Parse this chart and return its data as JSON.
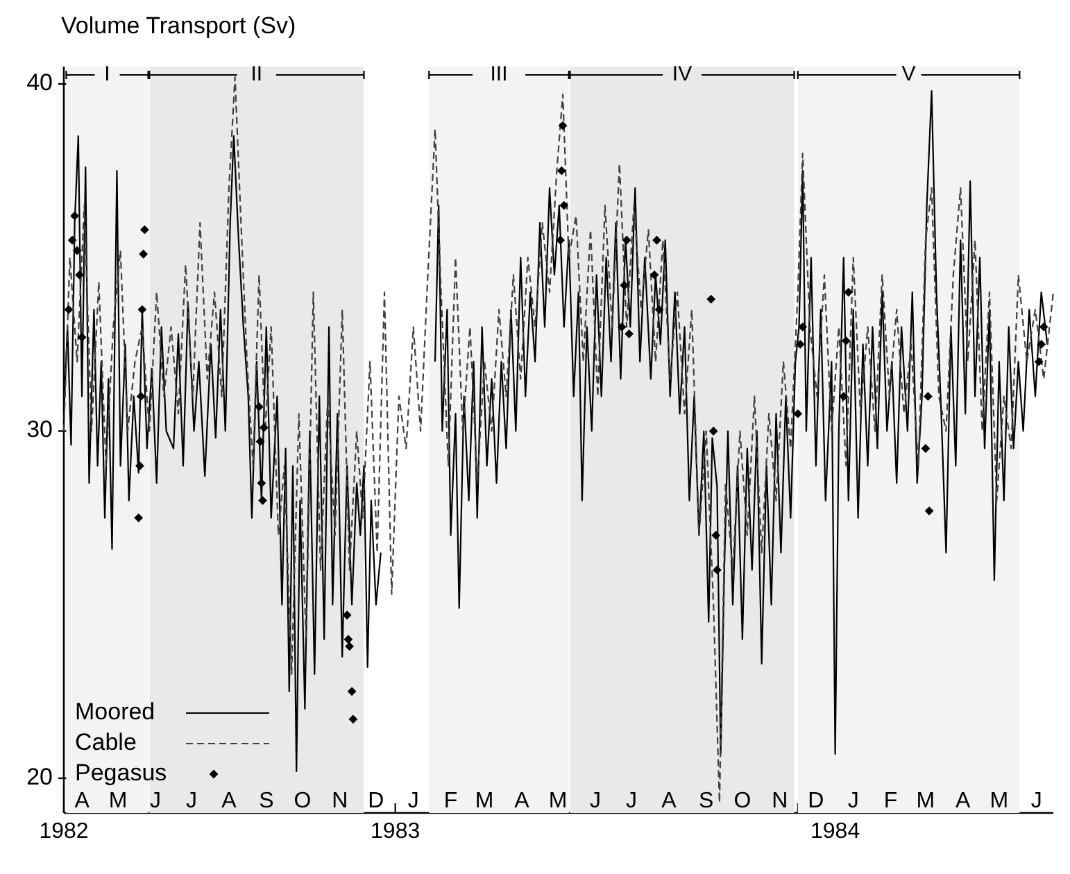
{
  "chart_data": {
    "type": "line",
    "ylabel": "Volume Transport (Sv)",
    "xlim": [
      "1982-04-01",
      "1984-06-30"
    ],
    "ylim": [
      19,
      40.5
    ],
    "yticks": [
      20,
      30,
      40
    ],
    "xticks": [
      {
        "value": "1982-04-01",
        "label": "1982"
      },
      {
        "value": "1982-05-01",
        "label": null
      },
      {
        "value": "1982-06-01",
        "label": null
      },
      {
        "value": "1982-07-01",
        "label": null
      },
      {
        "value": "1982-08-01",
        "label": null
      },
      {
        "value": "1982-09-01",
        "label": null
      },
      {
        "value": "1982-10-01",
        "label": null
      },
      {
        "value": "1982-11-01",
        "label": null
      },
      {
        "value": "1982-12-01",
        "label": null
      },
      {
        "value": "1983-01-01",
        "label": "1983"
      },
      {
        "value": "1983-02-01",
        "label": null
      },
      {
        "value": "1983-03-01",
        "label": null
      },
      {
        "value": "1983-04-01",
        "label": null
      },
      {
        "value": "1983-05-01",
        "label": null
      },
      {
        "value": "1983-06-01",
        "label": null
      },
      {
        "value": "1983-07-01",
        "label": null
      },
      {
        "value": "1983-08-01",
        "label": null
      },
      {
        "value": "1983-09-01",
        "label": null
      },
      {
        "value": "1983-10-01",
        "label": null
      },
      {
        "value": "1983-11-01",
        "label": null
      },
      {
        "value": "1983-12-01",
        "label": null
      },
      {
        "value": "1984-01-01",
        "label": "1984"
      },
      {
        "value": "1984-02-01",
        "label": null
      },
      {
        "value": "1984-03-01",
        "label": null
      },
      {
        "value": "1984-04-01",
        "label": null
      },
      {
        "value": "1984-05-01",
        "label": null
      },
      {
        "value": "1984-06-01",
        "label": null
      }
    ],
    "annotations": [
      "A",
      "M",
      "J",
      "J",
      "A",
      "S",
      "O",
      "N",
      "D",
      "J",
      "F",
      "M",
      "A",
      "M",
      "J",
      "J",
      "A",
      "S",
      "O",
      "N",
      "D",
      "J",
      "F",
      "M",
      "A",
      "M",
      "J"
    ],
    "bands": [
      {
        "axis": "x",
        "from": "1982-04-03",
        "to": "1982-06-10",
        "label": "I",
        "color": "#f3f3f3"
      },
      {
        "axis": "x",
        "from": "1982-06-11",
        "to": "1982-12-06",
        "label": "II",
        "color": "#e9e9e9"
      },
      {
        "axis": "x",
        "from": "1983-01-29",
        "to": "1983-05-25",
        "label": "III",
        "color": "#f3f3f3"
      },
      {
        "axis": "x",
        "from": "1983-05-26",
        "to": "1983-11-28",
        "label": "IV",
        "color": "#e9e9e9"
      },
      {
        "axis": "x",
        "from": "1983-12-01",
        "to": "1984-06-02",
        "label": "V",
        "color": "#f3f3f3"
      }
    ],
    "legend": "bottom left",
    "series": [
      {
        "name": "Moored",
        "line_style": "solid",
        "marker": "none",
        "color": "#000000",
        "x": [
          "1982-04-01",
          "1982-04-04",
          "1982-04-07",
          "1982-04-10",
          "1982-04-13",
          "1982-04-16",
          "1982-04-19",
          "1982-04-22",
          "1982-04-26",
          "1982-04-29",
          "1982-05-02",
          "1982-05-05",
          "1982-05-08",
          "1982-05-11",
          "1982-05-15",
          "1982-05-18",
          "1982-05-22",
          "1982-05-25",
          "1982-05-29",
          "1982-06-02",
          "1982-06-05",
          "1982-06-09",
          "1982-06-13",
          "1982-06-17",
          "1982-06-21",
          "1982-06-25",
          "1982-07-01",
          "1982-07-05",
          "1982-07-09",
          "1982-07-13",
          "1982-07-18",
          "1982-07-22",
          "1982-07-27",
          "1982-08-01",
          "1982-08-05",
          "1982-08-09",
          "1982-08-13",
          "1982-08-17",
          "1982-08-20",
          "1982-08-24",
          "1982-08-28",
          "1982-09-01",
          "1982-09-04",
          "1982-09-08",
          "1982-09-12",
          "1982-09-16",
          "1982-09-20",
          "1982-09-25",
          "1982-09-29",
          "1982-10-02",
          "1982-10-05",
          "1982-10-08",
          "1982-10-11",
          "1982-10-14",
          "1982-10-18",
          "1982-10-22",
          "1982-10-26",
          "1982-10-30",
          "1982-11-03",
          "1982-11-07",
          "1982-11-10",
          "1982-11-14",
          "1982-11-18",
          "1982-11-22",
          "1982-11-26",
          "1982-11-30",
          "1982-12-03",
          "1982-12-06",
          "1982-12-09",
          "1982-12-12",
          "1982-12-16",
          "1982-12-20",
          "1983-01-05",
          "1983-02-03",
          "1983-02-06",
          "1983-02-09",
          "1983-02-13",
          "1983-02-16",
          "1983-02-20",
          "1983-02-23",
          "1983-02-27",
          "1983-03-03",
          "1983-03-07",
          "1983-03-10",
          "1983-03-14",
          "1983-03-18",
          "1983-03-22",
          "1983-03-26",
          "1983-03-30",
          "1983-04-03",
          "1983-04-07",
          "1983-04-11",
          "1983-04-15",
          "1983-04-19",
          "1983-04-23",
          "1983-04-27",
          "1983-05-01",
          "1983-05-05",
          "1983-05-09",
          "1983-05-13",
          "1983-05-17",
          "1983-05-21",
          "1983-05-25",
          "1983-05-29",
          "1983-06-02",
          "1983-06-05",
          "1983-06-09",
          "1983-06-13",
          "1983-06-17",
          "1983-06-21",
          "1983-06-25",
          "1983-06-29",
          "1983-07-03",
          "1983-07-07",
          "1983-07-11",
          "1983-07-15",
          "1983-07-19",
          "1983-07-23",
          "1983-07-27",
          "1983-08-01",
          "1983-08-05",
          "1983-08-09",
          "1983-08-13",
          "1983-08-17",
          "1983-08-21",
          "1983-08-25",
          "1983-08-29",
          "1983-09-02",
          "1983-09-06",
          "1983-09-10",
          "1983-09-14",
          "1983-09-18",
          "1983-09-21",
          "1983-09-25",
          "1983-09-28",
          "1983-10-01",
          "1983-10-04",
          "1983-10-08",
          "1983-10-12",
          "1983-10-16",
          "1983-10-20",
          "1983-10-24",
          "1983-10-28",
          "1983-11-01",
          "1983-11-05",
          "1983-11-09",
          "1983-11-13",
          "1983-11-17",
          "1983-11-21",
          "1983-11-25",
          "1983-11-29",
          "1983-12-02",
          "1983-12-05",
          "1983-12-08",
          "1983-12-12",
          "1983-12-16",
          "1983-12-20",
          "1983-12-24",
          "1983-12-29",
          "1984-01-01",
          "1984-01-04",
          "1984-01-08",
          "1984-01-12",
          "1984-01-16",
          "1984-01-20",
          "1984-01-24",
          "1984-01-28",
          "1984-02-01",
          "1984-02-05",
          "1984-02-09",
          "1984-02-13",
          "1984-02-17",
          "1984-02-21",
          "1984-02-25",
          "1984-03-01",
          "1984-03-05",
          "1984-03-09",
          "1984-03-13",
          "1984-03-17",
          "1984-03-21",
          "1984-03-25",
          "1984-03-29",
          "1984-04-02",
          "1984-04-06",
          "1984-04-10",
          "1984-04-14",
          "1984-04-18",
          "1984-04-22",
          "1984-04-26",
          "1984-04-30",
          "1984-05-04",
          "1984-05-08",
          "1984-05-12",
          "1984-05-16",
          "1984-05-20",
          "1984-05-24",
          "1984-05-28",
          "1984-06-01",
          "1984-06-05",
          "1984-06-10",
          "1984-06-15",
          "1984-06-20",
          "1984-06-25"
        ],
        "values": [
          30.5,
          33,
          29.6,
          36,
          38.5,
          31,
          37.6,
          28.5,
          33.5,
          29,
          32,
          27.5,
          31.5,
          26.6,
          37.5,
          29,
          32.5,
          28,
          31,
          28.8,
          33.5,
          29.5,
          31.8,
          28.5,
          33,
          30,
          29.5,
          32.8,
          29,
          33.7,
          30,
          32,
          28.7,
          32.5,
          29.8,
          33.5,
          30,
          36,
          38.5,
          35.5,
          33,
          31,
          27.5,
          32,
          28,
          33,
          27.5,
          31,
          25,
          29.5,
          22.5,
          29,
          20.2,
          28,
          22,
          30,
          23,
          31,
          24,
          33,
          25,
          30.5,
          23.5,
          29,
          25,
          28.5,
          27,
          29,
          23.2,
          28,
          25,
          26.5,
          null,
          32,
          36.5,
          30,
          33.5,
          27,
          30.5,
          24.9,
          31,
          28,
          32,
          27.5,
          33,
          29,
          31.5,
          28.5,
          32,
          29.5,
          33.5,
          30,
          35,
          31,
          34,
          32,
          36,
          33,
          37,
          34.5,
          36.5,
          33,
          35.5,
          31,
          34,
          28,
          33,
          30,
          34.5,
          31,
          35,
          32,
          36,
          31.5,
          35.5,
          33,
          37,
          32,
          35,
          31.5,
          34.5,
          32.5,
          35.5,
          31,
          34,
          30.5,
          33,
          28,
          31,
          27,
          30,
          24.5,
          29.8,
          28.4,
          20.7,
          26,
          30,
          25,
          29,
          24,
          29.5,
          26,
          30,
          23.3,
          29,
          25,
          30.5,
          26.5,
          31,
          27.5,
          32,
          33,
          37.5,
          30,
          35,
          29,
          33.5,
          28,
          32,
          20.7,
          30,
          35,
          28,
          33.5,
          27.5,
          32.5,
          29,
          33,
          29.5,
          34,
          30,
          32,
          28.5,
          33,
          30,
          34,
          28.5,
          31,
          36.5,
          39.8,
          34,
          30.5,
          26.5,
          33,
          29,
          35.5,
          30.5,
          37.2,
          31,
          35,
          29.5,
          33.5,
          25.7,
          32,
          28,
          33,
          29.5,
          32,
          30,
          33.5,
          31,
          34,
          32.5
        ]
      },
      {
        "name": "Cable",
        "line_style": "dashed",
        "marker": "none",
        "color": "#404040",
        "x": [
          "1982-04-01",
          "1982-04-06",
          "1982-04-12",
          "1982-04-18",
          "1982-04-24",
          "1982-04-30",
          "1982-05-06",
          "1982-05-12",
          "1982-05-18",
          "1982-05-24",
          "1982-05-30",
          "1982-06-05",
          "1982-06-11",
          "1982-06-17",
          "1982-06-23",
          "1982-06-29",
          "1982-07-05",
          "1982-07-11",
          "1982-07-17",
          "1982-07-23",
          "1982-07-29",
          "1982-08-04",
          "1982-08-10",
          "1982-08-16",
          "1982-08-21",
          "1982-08-26",
          "1982-08-31",
          "1982-09-05",
          "1982-09-10",
          "1982-09-15",
          "1982-09-20",
          "1982-09-26",
          "1982-10-01",
          "1982-10-07",
          "1982-10-13",
          "1982-10-19",
          "1982-10-25",
          "1982-10-31",
          "1982-11-06",
          "1982-11-12",
          "1982-11-18",
          "1982-11-24",
          "1982-11-30",
          "1982-12-05",
          "1982-12-11",
          "1982-12-17",
          "1982-12-23",
          "1982-12-29",
          "1983-01-04",
          "1983-01-10",
          "1983-01-16",
          "1983-01-22",
          "1983-01-28",
          "1983-02-03",
          "1983-02-08",
          "1983-02-14",
          "1983-02-20",
          "1983-02-26",
          "1983-03-04",
          "1983-03-10",
          "1983-03-16",
          "1983-03-22",
          "1983-03-28",
          "1983-04-03",
          "1983-04-09",
          "1983-04-15",
          "1983-04-21",
          "1983-04-27",
          "1983-05-03",
          "1983-05-09",
          "1983-05-15",
          "1983-05-20",
          "1983-05-25",
          "1983-05-31",
          "1983-06-06",
          "1983-06-12",
          "1983-06-18",
          "1983-06-24",
          "1983-06-30",
          "1983-07-06",
          "1983-07-12",
          "1983-07-18",
          "1983-07-24",
          "1983-07-30",
          "1983-08-05",
          "1983-08-11",
          "1983-08-17",
          "1983-08-23",
          "1983-08-29",
          "1983-09-04",
          "1983-09-10",
          "1983-09-16",
          "1983-09-22",
          "1983-09-27",
          "1983-10-02",
          "1983-10-08",
          "1983-10-14",
          "1983-10-20",
          "1983-10-26",
          "1983-11-01",
          "1983-11-07",
          "1983-11-13",
          "1983-11-19",
          "1983-11-25",
          "1983-12-01",
          "1983-12-05",
          "1983-12-11",
          "1983-12-17",
          "1983-12-23",
          "1983-12-29",
          "1984-01-04",
          "1984-01-10",
          "1984-01-16",
          "1984-01-22",
          "1984-01-28",
          "1984-02-03",
          "1984-02-09",
          "1984-02-15",
          "1984-02-21",
          "1984-02-27",
          "1984-03-04",
          "1984-03-10",
          "1984-03-16",
          "1984-03-21",
          "1984-03-27",
          "1984-04-02",
          "1984-04-08",
          "1984-04-14",
          "1984-04-20",
          "1984-04-26",
          "1984-05-02",
          "1984-05-08",
          "1984-05-14",
          "1984-05-20",
          "1984-05-26",
          "1984-06-01",
          "1984-06-08",
          "1984-06-15",
          "1984-06-22",
          "1984-06-30"
        ],
        "values": [
          30,
          35,
          32,
          36.5,
          30,
          34.3,
          29,
          33,
          35.2,
          30,
          32,
          33,
          30,
          34,
          31,
          33,
          30.5,
          34.8,
          31,
          36,
          31.5,
          34,
          31,
          37,
          40.2,
          36,
          32,
          29,
          34.5,
          30,
          33,
          27,
          29,
          23,
          30.5,
          24,
          34,
          26,
          31,
          27,
          33.5,
          26,
          30,
          27.5,
          32,
          26.5,
          34,
          25.3,
          31,
          29.5,
          33,
          30,
          34.5,
          38.7,
          34,
          29,
          35,
          30,
          33,
          28.5,
          32,
          30,
          33.5,
          31,
          34.5,
          31.5,
          35,
          33,
          36,
          34,
          37.5,
          39.7,
          35,
          36.2,
          32,
          35.8,
          31,
          36.5,
          33,
          37.7,
          33,
          36.5,
          33.5,
          35.8,
          32,
          35.5,
          31.5,
          34,
          30.5,
          33.5,
          27,
          30,
          25,
          19.3,
          28.5,
          26,
          30,
          27,
          31,
          26.5,
          30.5,
          28,
          32,
          29.5,
          34,
          38,
          33,
          31,
          34.5,
          30,
          33,
          29,
          35,
          30.5,
          33,
          30,
          34.5,
          31,
          33.5,
          30.5,
          32.5,
          29,
          35.5,
          37,
          31,
          30,
          34.5,
          37,
          32,
          35.5,
          30,
          34,
          28,
          31,
          29.5,
          34.5,
          32,
          33.5,
          31.5,
          34
        ]
      },
      {
        "name": "Pegasus",
        "type": "scatter",
        "marker": "diamond",
        "color": "#000000",
        "x": [
          "1982-04-05",
          "1982-04-08",
          "1982-04-10",
          "1982-04-12",
          "1982-04-14",
          "1982-04-16",
          "1982-06-02",
          "1982-06-03",
          "1982-06-04",
          "1982-06-05",
          "1982-06-06",
          "1982-06-07",
          "1982-09-10",
          "1982-09-11",
          "1982-09-12",
          "1982-09-13",
          "1982-09-14",
          "1982-11-22",
          "1982-11-23",
          "1982-11-24",
          "1982-11-26",
          "1982-11-27",
          "1983-05-18",
          "1983-05-19",
          "1983-05-20",
          "1983-05-21",
          "1983-07-08",
          "1983-07-10",
          "1983-07-12",
          "1983-07-14",
          "1983-08-04",
          "1983-08-06",
          "1983-08-08",
          "1983-09-20",
          "1983-09-22",
          "1983-09-24",
          "1983-09-25",
          "1983-12-01",
          "1983-12-03",
          "1983-12-05",
          "1984-01-08",
          "1984-01-10",
          "1984-01-12",
          "1984-03-16",
          "1984-03-18",
          "1984-03-19",
          "1984-06-18",
          "1984-06-20",
          "1984-06-22"
        ],
        "values": [
          33.5,
          35.5,
          36.2,
          35.2,
          34.5,
          32.7,
          27.5,
          29,
          31,
          33.5,
          35.1,
          35.8,
          30.7,
          29.7,
          28.5,
          28,
          30.1,
          24.7,
          24,
          23.8,
          22.5,
          21.7,
          35.5,
          37.5,
          38.8,
          36.5,
          33,
          34.2,
          35.5,
          32.8,
          34.5,
          35.5,
          33.5,
          33.8,
          30,
          27,
          26,
          30.5,
          32.5,
          33,
          31,
          32.6,
          34,
          29.5,
          31,
          27.7,
          32,
          32.5,
          33
        ]
      }
    ]
  }
}
